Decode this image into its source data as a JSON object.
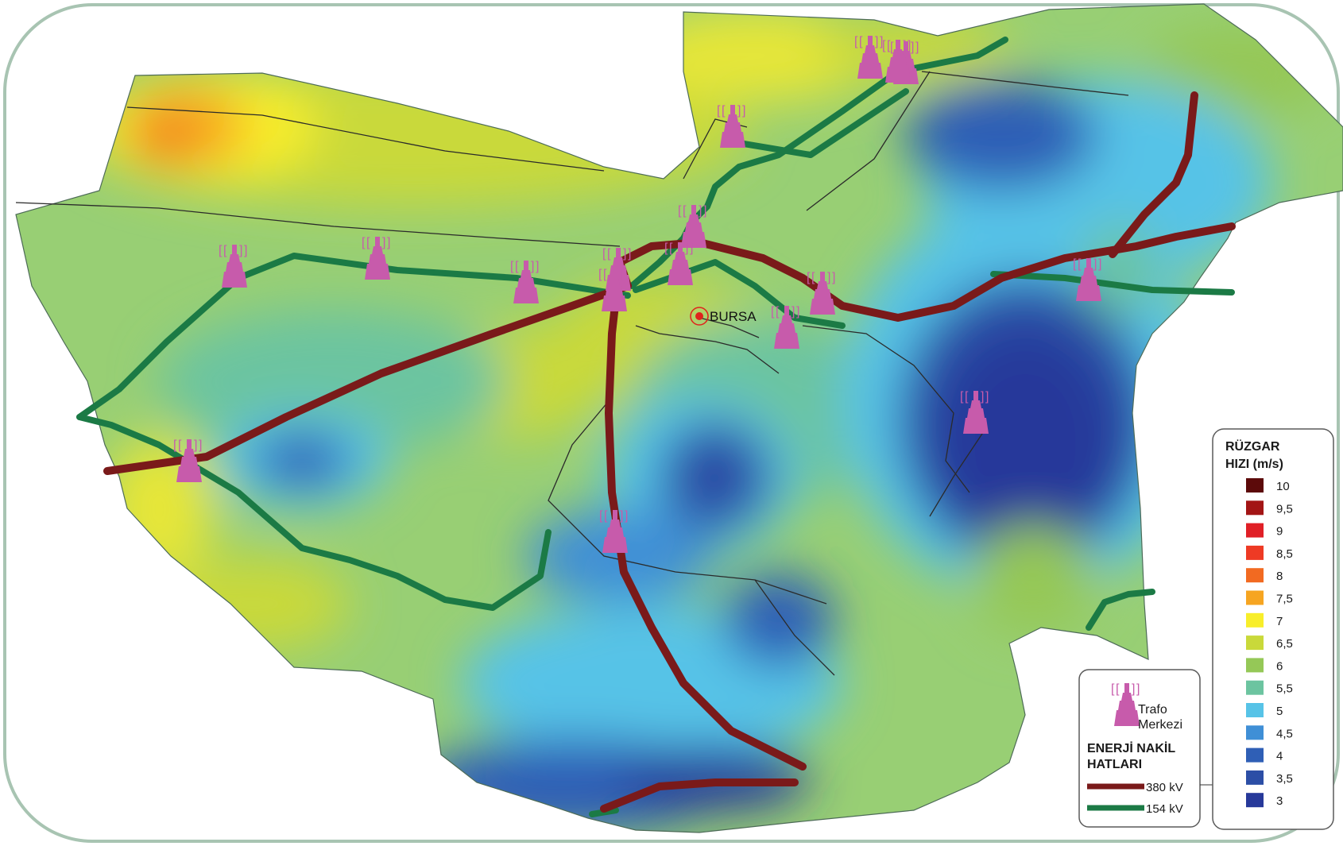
{
  "city": {
    "label": "BURSA"
  },
  "substations": {
    "count_on_map": 17
  },
  "legend_lines": {
    "substation_label_line1": "Trafo",
    "substation_label_line2": "Merkezi",
    "title_line1": "ENERJİ NAKİL",
    "title_line2": "HATLARI",
    "line_380": {
      "label": "380 kV",
      "color": "#7a1a1a"
    },
    "line_154": {
      "label": "154 kV",
      "color": "#1b7a45"
    }
  },
  "legend_wind": {
    "title_line1": "RÜZGAR",
    "title_line2": "HIZI (m/s)",
    "items": [
      {
        "label": "10",
        "color": "#5c0a0a"
      },
      {
        "label": "9,5",
        "color": "#a31515"
      },
      {
        "label": "9",
        "color": "#e01f26"
      },
      {
        "label": "8,5",
        "color": "#ee3a24"
      },
      {
        "label": "8",
        "color": "#f26a21"
      },
      {
        "label": "7,5",
        "color": "#f6a521"
      },
      {
        "label": "7",
        "color": "#f8ee2a"
      },
      {
        "label": "6,5",
        "color": "#c9d93a"
      },
      {
        "label": "6",
        "color": "#95c857"
      },
      {
        "label": "5,5",
        "color": "#6cc4a0"
      },
      {
        "label": "5",
        "color": "#57c3e7"
      },
      {
        "label": "4,5",
        "color": "#3f8fd6"
      },
      {
        "label": "4",
        "color": "#2f5fb6"
      },
      {
        "label": "3,5",
        "color": "#2c4ea6"
      },
      {
        "label": "3",
        "color": "#27399a"
      }
    ]
  },
  "colors": {
    "frame": "#a8c4b2",
    "substation": "#c75bab",
    "district_border": "#2a2a2a"
  }
}
